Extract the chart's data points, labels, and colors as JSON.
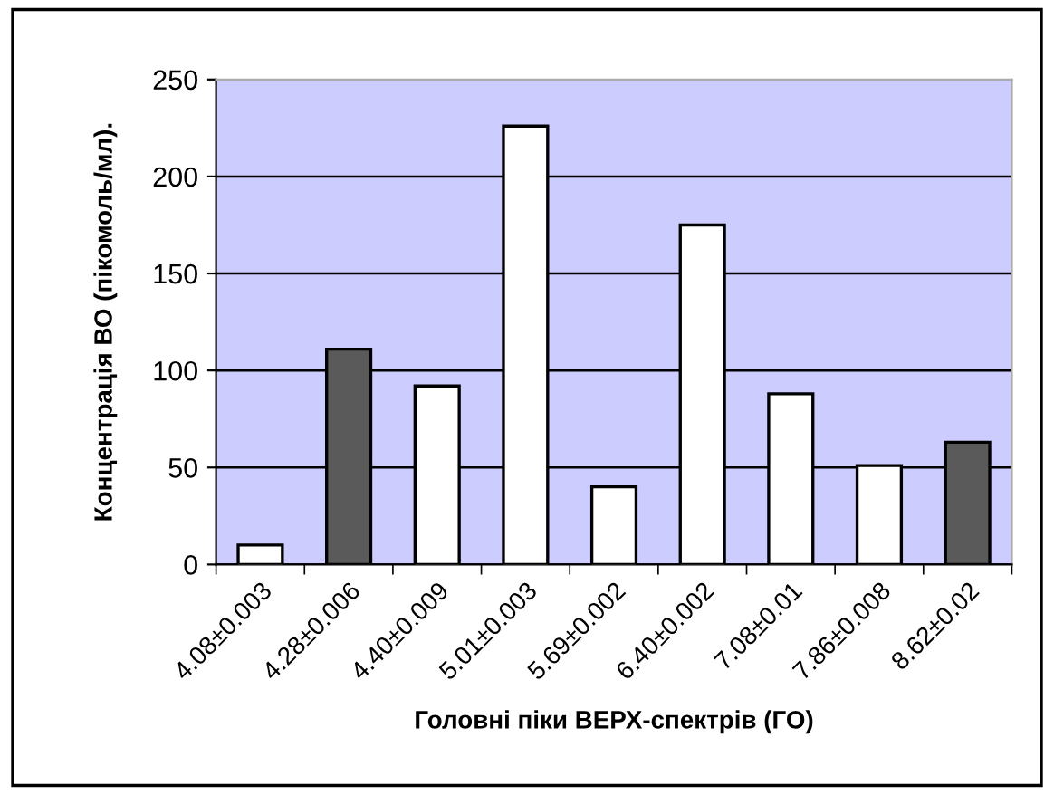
{
  "chart_data": {
    "type": "bar",
    "xlabel": "Головні піки ВЕРХ-спектрів (ГО)",
    "ylabel": "Концентрація ВО (пікомоль/мл).",
    "categories": [
      "4.08±0.003",
      "4.28±0.006",
      "4.40±0.009",
      "5.01±0.003",
      "5.69±0.002",
      "6.40±0.002",
      "7.08±0.01",
      "7.86±0.008",
      "8.62±0.02"
    ],
    "values": [
      10,
      111,
      92,
      226,
      40,
      175,
      88,
      51,
      63
    ],
    "colors": [
      "#ffffff",
      "#5a5a5a",
      "#ffffff",
      "#ffffff",
      "#ffffff",
      "#ffffff",
      "#ffffff",
      "#ffffff",
      "#5a5a5a"
    ],
    "ylim": [
      0,
      250
    ],
    "yticks": [
      0,
      50,
      100,
      150,
      200,
      250
    ],
    "grid": "y"
  }
}
